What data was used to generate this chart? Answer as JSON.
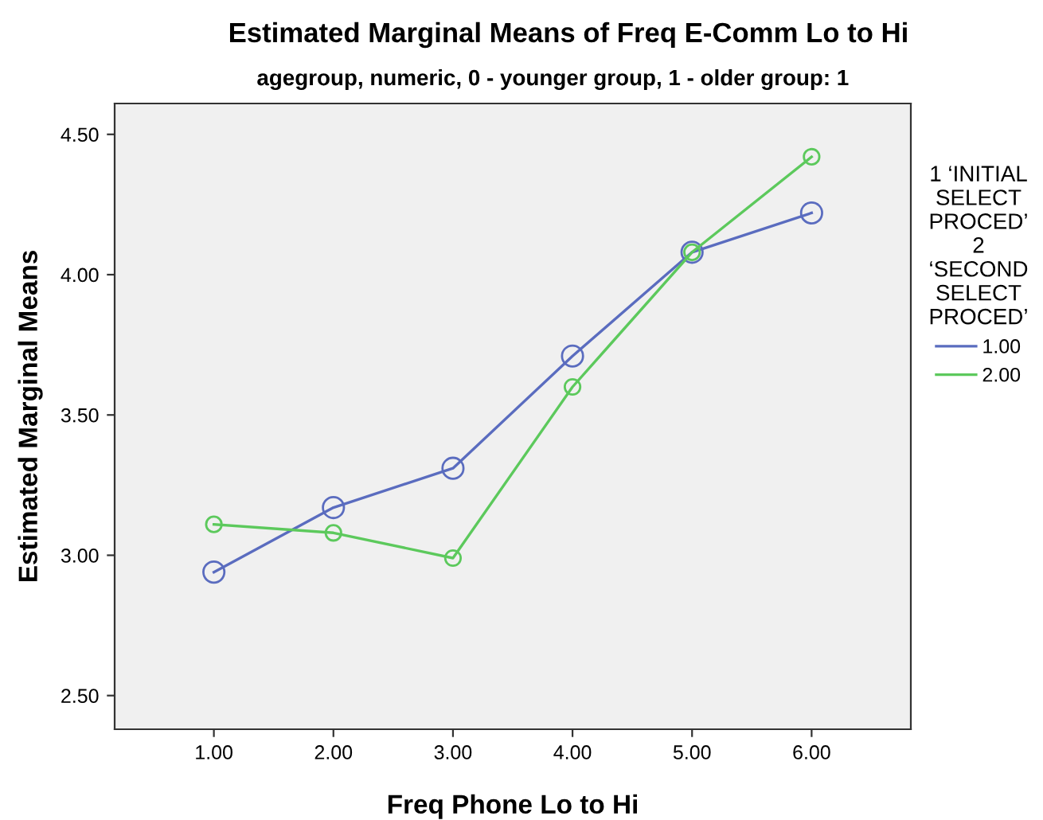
{
  "chart_data": {
    "type": "line",
    "title": "Estimated Marginal Means of Freq E-Comm Lo to Hi",
    "subtitle": "agegroup, numeric, 0 - younger group, 1 - older group: 1",
    "xlabel": "Freq Phone Lo to Hi",
    "ylabel": "Estimated Marginal Means",
    "legend_title": "1 ‘INITIAL\nSELECT\nPROCED’\n2\n‘SECOND\nSELECT\nPROCED’",
    "x": [
      1,
      2,
      3,
      4,
      5,
      6
    ],
    "series": [
      {
        "name": "1.00",
        "color": "#5a6cbf",
        "values": [
          2.94,
          3.17,
          3.31,
          3.71,
          4.08,
          4.22
        ]
      },
      {
        "name": "2.00",
        "color": "#5cc95c",
        "values": [
          3.11,
          3.08,
          2.99,
          3.6,
          4.08,
          4.42
        ]
      }
    ],
    "xlim": [
      0.17,
      6.83
    ],
    "ylim": [
      2.38,
      4.61
    ],
    "xticks": [
      {
        "value": 1,
        "label": "1.00"
      },
      {
        "value": 2,
        "label": "2.00"
      },
      {
        "value": 3,
        "label": "3.00"
      },
      {
        "value": 4,
        "label": "4.00"
      },
      {
        "value": 5,
        "label": "5.00"
      },
      {
        "value": 6,
        "label": "6.00"
      }
    ],
    "yticks": [
      {
        "value": 2.5,
        "label": "2.50"
      },
      {
        "value": 3.0,
        "label": "3.00"
      },
      {
        "value": 3.5,
        "label": "3.50"
      },
      {
        "value": 4.0,
        "label": "4.00"
      },
      {
        "value": 4.5,
        "label": "4.50"
      }
    ],
    "marker": "circle",
    "line_style": "solid",
    "grid": false,
    "legend": "right"
  }
}
